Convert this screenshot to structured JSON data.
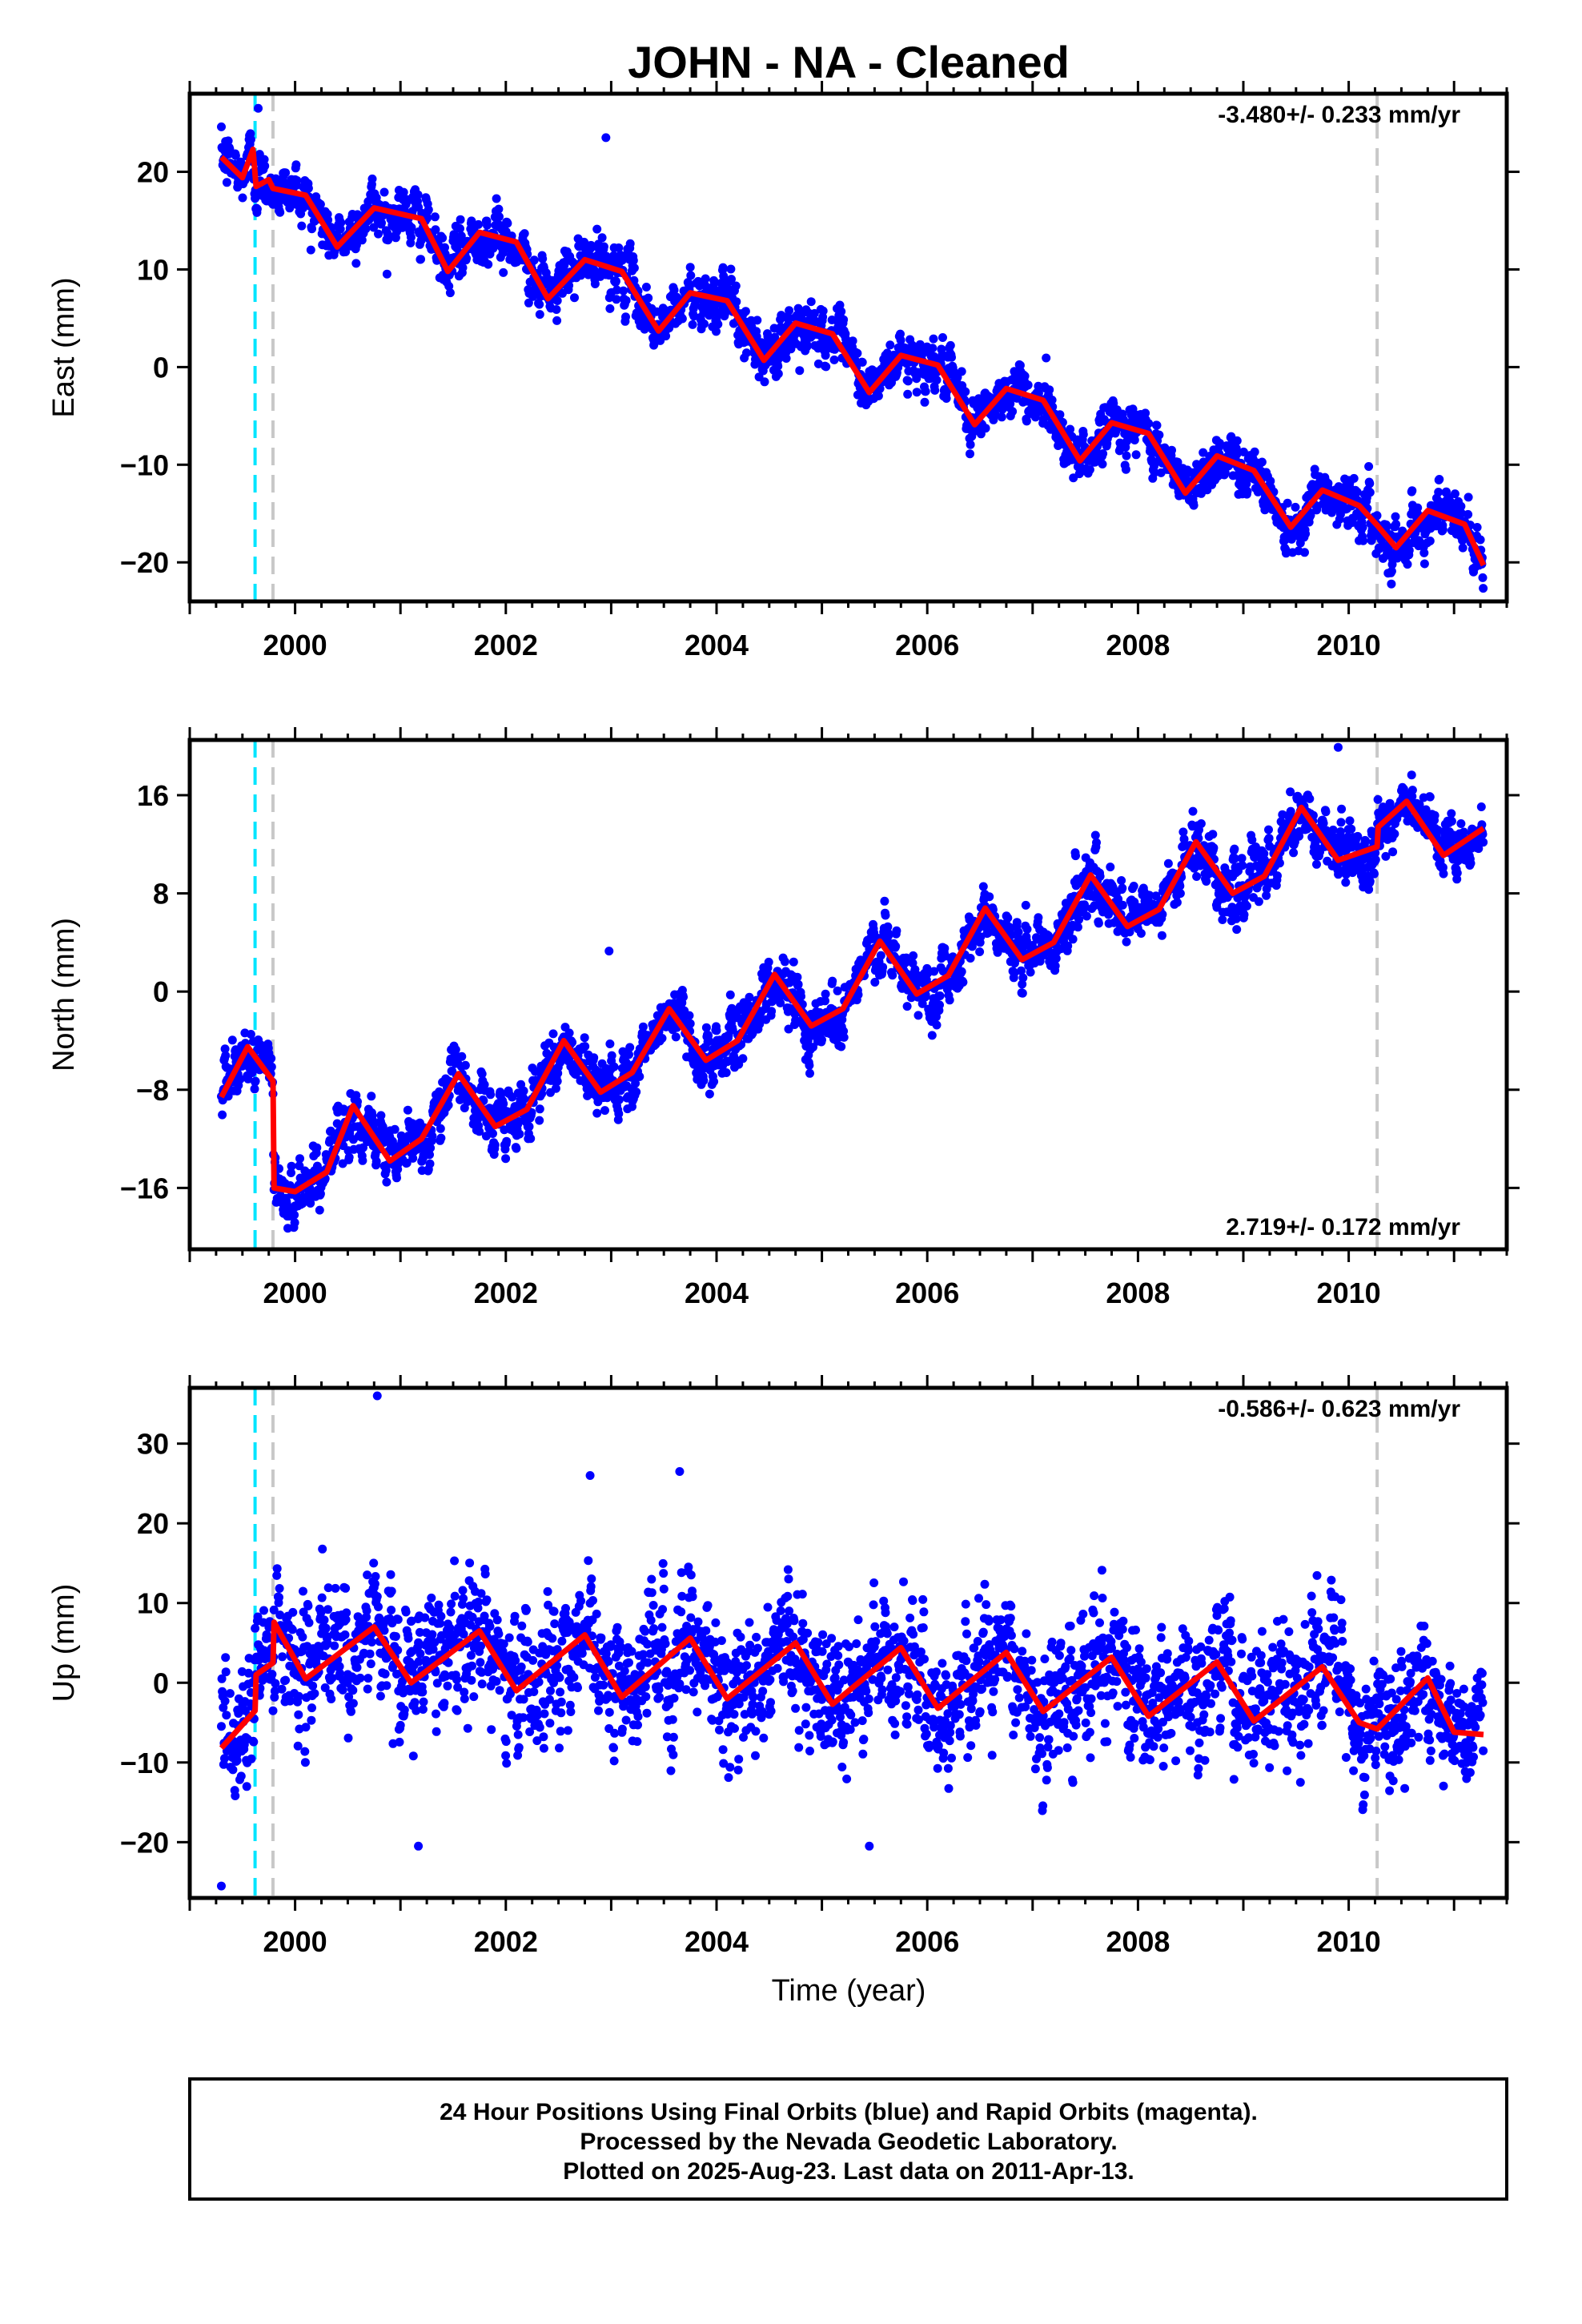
{
  "chart_data": {
    "title": "JOHN  - NA - Cleaned",
    "type": "scatter",
    "xlabel": "Time (year)",
    "xlim": [
      1999.0,
      2011.5
    ],
    "x_ticks": [
      2000,
      2002,
      2004,
      2006,
      2008,
      2010
    ],
    "x_tick_labels": [
      "2000",
      "2002",
      "2004",
      "2006",
      "2008",
      "2010"
    ],
    "vertical_markers": [
      {
        "x": 1999.62,
        "color": "#00e5ff",
        "style": "dashed"
      },
      {
        "x": 1999.79,
        "color": "#c8c8c8",
        "style": "dashed"
      },
      {
        "x": 2010.27,
        "color": "#c8c8c8",
        "style": "dashed"
      }
    ],
    "data_range": [
      1999.3,
      2011.28
    ],
    "panels": [
      {
        "id": "east",
        "ylabel": "East (mm)",
        "ylim": [
          -24,
          28
        ],
        "y_ticks": [
          -20,
          -10,
          0,
          10,
          20
        ],
        "y_tick_labels": [
          "−20",
          "−10",
          "0",
          "10",
          "20"
        ],
        "rate_label": "-3.480+/- 0.233 mm/yr",
        "rate_position": "top-right",
        "model": {
          "offset": 21.5,
          "rate": -3.48,
          "annual_amp": 3.2,
          "annual_phase": 0.35,
          "semi_amp": 0.6,
          "offsets": [
            {
              "x": 1999.62,
              "dy": -3.0
            },
            {
              "x": 1999.79,
              "dy": 1.0
            },
            {
              "x": 2010.27,
              "dy": -0.8
            }
          ],
          "noise": 1.4,
          "noise_end": 1.6
        },
        "fit_points": [
          [
            1999.3,
            21.5
          ],
          [
            1999.5,
            19.4
          ],
          [
            1999.6,
            22.3
          ],
          [
            1999.63,
            18.5
          ],
          [
            1999.75,
            19.2
          ],
          [
            1999.79,
            18.3
          ],
          [
            2000.1,
            17.6
          ],
          [
            2000.4,
            12.3
          ],
          [
            2000.75,
            16.3
          ],
          [
            2001.2,
            15.2
          ],
          [
            2001.45,
            9.8
          ],
          [
            2001.75,
            13.8
          ],
          [
            2002.1,
            12.8
          ],
          [
            2002.4,
            7.0
          ],
          [
            2002.75,
            11.0
          ],
          [
            2003.1,
            9.8
          ],
          [
            2003.45,
            3.7
          ],
          [
            2003.75,
            7.6
          ],
          [
            2004.1,
            6.8
          ],
          [
            2004.45,
            0.7
          ],
          [
            2004.75,
            4.5
          ],
          [
            2005.1,
            3.4
          ],
          [
            2005.45,
            -2.6
          ],
          [
            2005.75,
            1.2
          ],
          [
            2006.1,
            0.2
          ],
          [
            2006.45,
            -5.9
          ],
          [
            2006.75,
            -2.2
          ],
          [
            2007.1,
            -3.4
          ],
          [
            2007.45,
            -9.6
          ],
          [
            2007.75,
            -5.7
          ],
          [
            2008.1,
            -6.8
          ],
          [
            2008.45,
            -12.9
          ],
          [
            2008.75,
            -9.1
          ],
          [
            2009.1,
            -10.6
          ],
          [
            2009.45,
            -16.4
          ],
          [
            2009.75,
            -12.6
          ],
          [
            2010.1,
            -14.2
          ],
          [
            2010.27,
            -16.2
          ],
          [
            2010.45,
            -18.5
          ],
          [
            2010.75,
            -14.7
          ],
          [
            2011.1,
            -16.1
          ],
          [
            2011.28,
            -20.3
          ]
        ],
        "outliers": [
          [
            2002.95,
            23.5
          ],
          [
            1999.65,
            26.5
          ]
        ]
      },
      {
        "id": "north",
        "ylabel": "North (mm)",
        "ylim": [
          -21,
          20.5
        ],
        "y_ticks": [
          -16,
          -8,
          0,
          8,
          16
        ],
        "y_tick_labels": [
          "−16",
          "−8",
          "0",
          "8",
          "16"
        ],
        "rate_label": "2.719+/- 0.172 mm/yr",
        "rate_position": "bottom-right",
        "model": {
          "offset": -9.0,
          "rate": 2.719,
          "annual_amp": 2.7,
          "annual_phase": 0.55,
          "semi_amp": 0.3,
          "offsets": [
            {
              "x": 1999.79,
              "dy": -9.8
            },
            {
              "x": 2010.27,
              "dy": 1.6
            }
          ],
          "noise": 1.3,
          "noise_end": 1.3
        },
        "fit_points": [
          [
            1999.3,
            -8.6
          ],
          [
            1999.55,
            -4.5
          ],
          [
            1999.79,
            -7.3
          ],
          [
            1999.8,
            -16.0
          ],
          [
            2000.0,
            -16.3
          ],
          [
            2000.3,
            -14.7
          ],
          [
            2000.55,
            -9.3
          ],
          [
            2000.9,
            -13.8
          ],
          [
            2001.2,
            -12.0
          ],
          [
            2001.55,
            -6.7
          ],
          [
            2001.9,
            -11.0
          ],
          [
            2002.2,
            -9.6
          ],
          [
            2002.55,
            -4.0
          ],
          [
            2002.9,
            -8.2
          ],
          [
            2003.2,
            -6.6
          ],
          [
            2003.55,
            -1.4
          ],
          [
            2003.9,
            -5.6
          ],
          [
            2004.2,
            -4.0
          ],
          [
            2004.55,
            1.4
          ],
          [
            2004.9,
            -2.8
          ],
          [
            2005.2,
            -1.4
          ],
          [
            2005.55,
            4.1
          ],
          [
            2005.9,
            -0.2
          ],
          [
            2006.2,
            1.3
          ],
          [
            2006.55,
            6.8
          ],
          [
            2006.9,
            2.6
          ],
          [
            2007.2,
            4.0
          ],
          [
            2007.55,
            9.5
          ],
          [
            2007.9,
            5.3
          ],
          [
            2008.2,
            6.7
          ],
          [
            2008.55,
            12.2
          ],
          [
            2008.9,
            8.0
          ],
          [
            2009.2,
            9.4
          ],
          [
            2009.55,
            15.0
          ],
          [
            2009.9,
            10.7
          ],
          [
            2010.27,
            11.8
          ],
          [
            2010.28,
            13.4
          ],
          [
            2010.55,
            15.5
          ],
          [
            2010.9,
            11.1
          ],
          [
            2011.28,
            13.3
          ]
        ],
        "outliers": [
          [
            2002.98,
            3.3
          ],
          [
            2009.9,
            19.9
          ]
        ]
      },
      {
        "id": "up",
        "ylabel": "Up (mm)",
        "ylim": [
          -27,
          37
        ],
        "y_ticks": [
          -20,
          -10,
          0,
          10,
          20,
          30
        ],
        "y_tick_labels": [
          "−20",
          "−10",
          "0",
          "10",
          "20",
          "30"
        ],
        "rate_label": "-0.586+/- 0.623 mm/yr",
        "rate_position": "top-right",
        "model": {
          "offset": -6.0,
          "rate": -0.586,
          "annual_amp": 4.0,
          "annual_phase": 0.8,
          "semi_amp": 0.6,
          "offsets": [
            {
              "x": 1999.62,
              "dy": 4.0
            },
            {
              "x": 1999.79,
              "dy": 5.0
            },
            {
              "x": 2010.27,
              "dy": -3.0
            }
          ],
          "noise": 4.2,
          "noise_end": 4.2
        },
        "fit_points": [
          [
            1999.3,
            -8.2
          ],
          [
            1999.62,
            -3.5
          ],
          [
            1999.63,
            1.0
          ],
          [
            1999.79,
            2.5
          ],
          [
            1999.8,
            7.6
          ],
          [
            2000.1,
            0.5
          ],
          [
            2000.75,
            7.0
          ],
          [
            2001.1,
            0.0
          ],
          [
            2001.75,
            6.5
          ],
          [
            2002.1,
            -1.0
          ],
          [
            2002.75,
            6.0
          ],
          [
            2003.1,
            -1.8
          ],
          [
            2003.75,
            5.6
          ],
          [
            2004.1,
            -2.0
          ],
          [
            2004.75,
            5.0
          ],
          [
            2005.1,
            -2.7
          ],
          [
            2005.75,
            4.4
          ],
          [
            2006.1,
            -3.2
          ],
          [
            2006.75,
            3.8
          ],
          [
            2007.1,
            -3.6
          ],
          [
            2007.75,
            3.2
          ],
          [
            2008.1,
            -4.2
          ],
          [
            2008.75,
            2.6
          ],
          [
            2009.1,
            -4.8
          ],
          [
            2009.75,
            2.0
          ],
          [
            2010.1,
            -5.0
          ],
          [
            2010.27,
            -5.8
          ],
          [
            2010.75,
            0.6
          ],
          [
            2011.0,
            -6.2
          ],
          [
            2011.28,
            -6.5
          ]
        ],
        "outliers": [
          [
            2000.78,
            36.0
          ],
          [
            2002.8,
            26.0
          ],
          [
            2003.65,
            26.5
          ],
          [
            1999.3,
            -25.5
          ],
          [
            2001.17,
            -20.5
          ],
          [
            2005.45,
            -20.5
          ]
        ]
      }
    ],
    "point_color": "#0000ff",
    "fit_color": "#ff0000",
    "footer_lines": [
      "24 Hour Positions Using Final Orbits (blue) and Rapid Orbits (magenta).",
      "Processed by the Nevada Geodetic Laboratory.",
      "Plotted on 2025-Aug-23. Last data on 2011-Apr-13."
    ]
  }
}
